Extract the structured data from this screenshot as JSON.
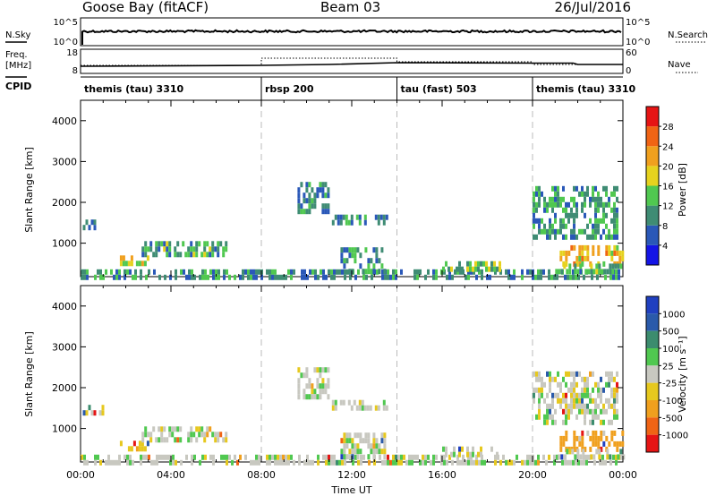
{
  "header": {
    "station": "Goose Bay (fitACF)",
    "beam": "Beam 03",
    "date": "26/Jul/2016"
  },
  "nsky_panel": {
    "left_label": "N.Sky",
    "left_ticks": [
      "10^5",
      "10^0"
    ],
    "right_label": "N.Search",
    "right_ticks": [
      "10^5",
      "10^0"
    ]
  },
  "freq_panel": {
    "left_label": "Freq.",
    "left_unit": "[MHz]",
    "left_ticks": [
      "18",
      "8"
    ],
    "right_label": "Nave",
    "right_ticks": [
      "60",
      "0"
    ]
  },
  "cpid": {
    "label": "CPID",
    "segments": [
      {
        "name": "themis (tau) 3310",
        "start_h": 0,
        "end_h": 8
      },
      {
        "name": "rbsp 200",
        "start_h": 8,
        "end_h": 14
      },
      {
        "name": "tau (fast) 503",
        "start_h": 14,
        "end_h": 20
      },
      {
        "name": "themis (tau) 3310",
        "start_h": 20,
        "end_h": 24
      }
    ]
  },
  "x_axis": {
    "label": "Time UT",
    "ticks": [
      "00:00",
      "04:00",
      "08:00",
      "12:00",
      "16:00",
      "20:00",
      "00:00"
    ]
  },
  "y_axis": {
    "label": "Slant Range [km]",
    "ticks": [
      "1000",
      "2000",
      "3000",
      "4000"
    ]
  },
  "power_scale": {
    "label": "Power [dB]",
    "ticks": [
      "4",
      "8",
      "12",
      "16",
      "20",
      "24",
      "28"
    ],
    "colors": [
      "#1414e6",
      "#2a58b8",
      "#3f8c74",
      "#50c850",
      "#e6d21e",
      "#f0a01e",
      "#f06414",
      "#e61414"
    ]
  },
  "velocity_scale": {
    "label": "Velocity [m s⁻¹]",
    "ticks": [
      "1000",
      "500",
      "100",
      "25",
      "-25",
      "-100",
      "-500",
      "-1000"
    ],
    "colors": [
      "#2040c0",
      "#2a5aaa",
      "#3c8c6e",
      "#50c850",
      "#c8c8c0",
      "#e6c81e",
      "#f0a01e",
      "#f06414",
      "#e61414"
    ]
  },
  "chart_data": {
    "type": "heatmap",
    "x_range_hours": [
      0,
      24
    ],
    "ylim": [
      180,
      4500
    ],
    "dashed_lines_at_hours": [
      8,
      14,
      20
    ],
    "echo_regions": [
      {
        "t0": 0.1,
        "t1": 1.0,
        "r0": 1380,
        "r1": 1580,
        "power": 10,
        "velocity": 0
      },
      {
        "t0": 1.5,
        "t1": 3.0,
        "r0": 500,
        "r1": 700,
        "power": 18,
        "velocity": -80
      },
      {
        "t0": 2.7,
        "t1": 6.4,
        "r0": 750,
        "r1": 1050,
        "power": 12,
        "velocity": 0
      },
      {
        "t0": 0.0,
        "t1": 24.0,
        "r0": 190,
        "r1": 360,
        "power": 10,
        "velocity": 5
      },
      {
        "t0": 9.6,
        "t1": 11.0,
        "r0": 1800,
        "r1": 2500,
        "power": 9,
        "velocity": 0
      },
      {
        "t0": 11.0,
        "t1": 13.5,
        "r0": 1450,
        "r1": 1700,
        "power": 9,
        "velocity": 0
      },
      {
        "t0": 11.5,
        "t1": 13.5,
        "r0": 300,
        "r1": 900,
        "power": 10,
        "velocity": 0
      },
      {
        "t0": 16.0,
        "t1": 18.5,
        "r0": 420,
        "r1": 560,
        "power": 14,
        "velocity": 0
      },
      {
        "t0": 20.0,
        "t1": 23.8,
        "r0": 1200,
        "r1": 2400,
        "power": 11,
        "velocity": 0
      },
      {
        "t0": 21.2,
        "t1": 24.0,
        "r0": 550,
        "r1": 950,
        "power": 20,
        "velocity": -200
      },
      {
        "t0": 21.0,
        "t1": 24.0,
        "r0": 300,
        "r1": 500,
        "power": 12,
        "velocity": 0
      }
    ]
  }
}
